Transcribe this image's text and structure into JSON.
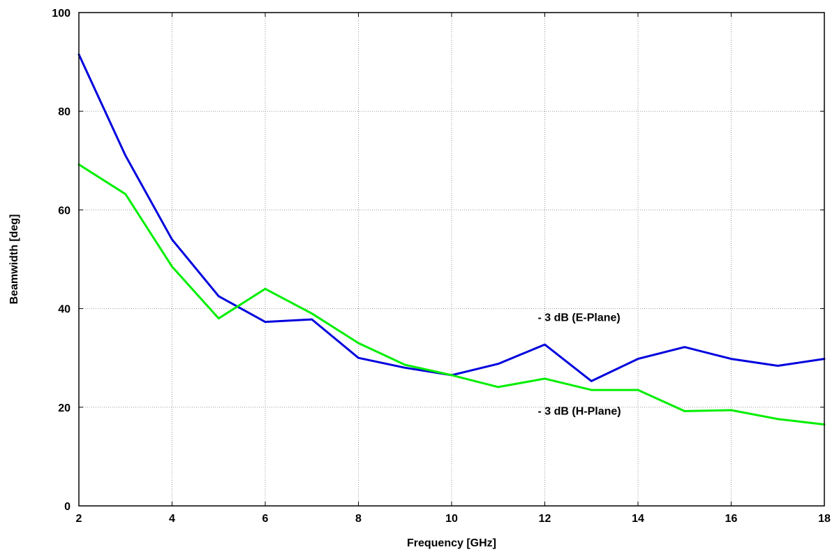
{
  "chart_data": {
    "type": "line",
    "xlabel": "Frequency [GHz]",
    "ylabel": "Beamwidth [deg]",
    "xlim": [
      2,
      18
    ],
    "ylim": [
      0,
      100
    ],
    "x_ticks": [
      2,
      4,
      6,
      8,
      10,
      12,
      14,
      16,
      18
    ],
    "y_ticks": [
      0,
      20,
      40,
      60,
      80,
      100
    ],
    "grid": true,
    "x": [
      2,
      3,
      4,
      5,
      6,
      7,
      8,
      9,
      10,
      11,
      12,
      13,
      14,
      15,
      16,
      17,
      18
    ],
    "series": [
      {
        "color": "#0000dd",
        "values": [
          91.5,
          71,
          54,
          42.5,
          37.3,
          37.8,
          30,
          28,
          26.5,
          28.8,
          32.7,
          25.3,
          29.8,
          32.2,
          29.8,
          28.4,
          29.8
        ]
      },
      {
        "color": "#00ee00",
        "values": [
          69.2,
          63.2,
          48.5,
          38,
          44,
          39,
          33,
          28.6,
          26.5,
          24.1,
          25.8,
          23.5,
          23.5,
          19.2,
          19.4,
          17.6,
          16.5
        ]
      }
    ],
    "annotations": [
      {
        "text": "- 3 dB (E-Plane)",
        "x": 11.85,
        "y": 37.5
      },
      {
        "text": "- 3 dB (H-Plane)",
        "x": 11.85,
        "y": 18.5
      }
    ]
  }
}
